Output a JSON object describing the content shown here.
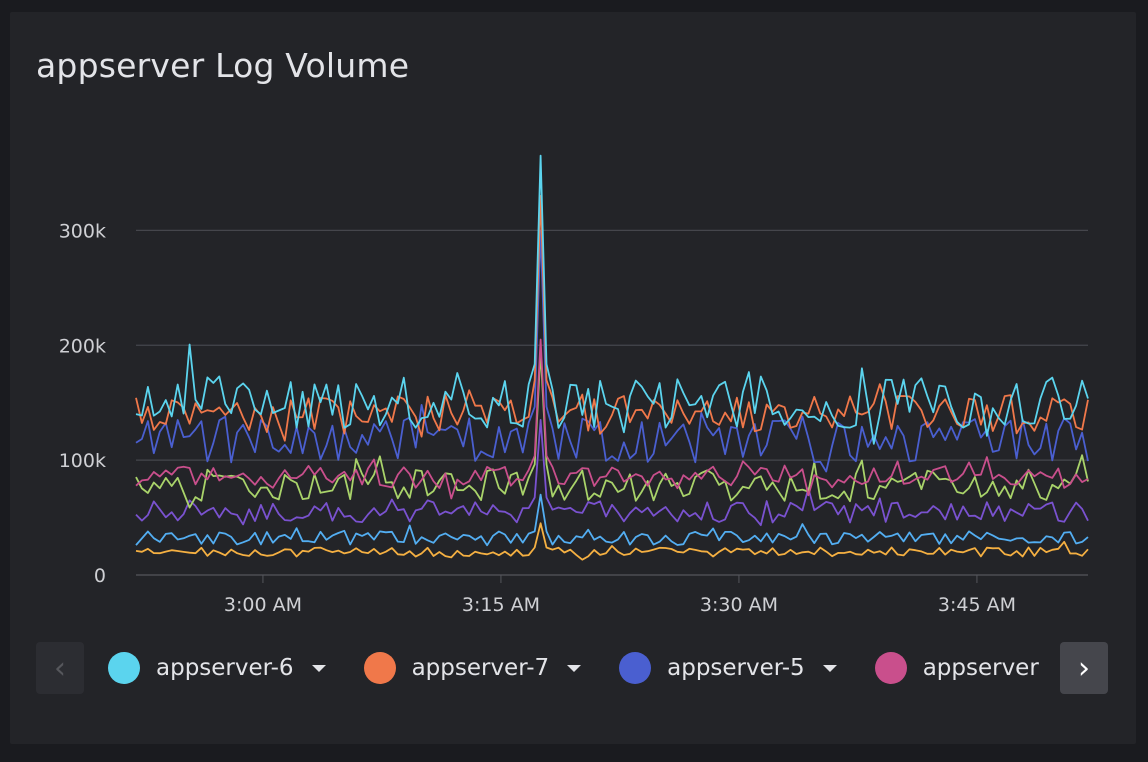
{
  "chart_data": {
    "type": "line",
    "title": "appserver Log Volume",
    "ylim": [
      0,
      370000
    ],
    "y_ticks": [
      0,
      100000,
      200000,
      300000
    ],
    "y_tick_labels": [
      "0",
      "100k",
      "200k",
      "300k"
    ],
    "x_range": [
      "2:52 AM",
      "3:52 AM"
    ],
    "x_ticks": [
      "3:00 AM",
      "3:15 AM",
      "3:30 AM",
      "3:45 AM"
    ],
    "x_tick_minutes": [
      8,
      23,
      38,
      53
    ],
    "x_minutes_range": [
      0,
      60
    ],
    "grid": "horizontal",
    "legend_position": "bottom",
    "series": [
      {
        "name": "appserver-6",
        "color": "#5bd4ee",
        "base": 150000,
        "amp": 22000,
        "spike": 365000
      },
      {
        "name": "appserver-7",
        "color": "#f0784a",
        "base": 140000,
        "amp": 18000,
        "spike": 330000
      },
      {
        "name": "",
        "color": "#4a5fd0",
        "base": 118000,
        "amp": 20000,
        "spike": 300000
      },
      {
        "name": "",
        "color": "#c94f8c",
        "base": 85000,
        "amp": 10000,
        "spike": 205000
      },
      {
        "name": "",
        "color": "#a9d36a",
        "base": 78000,
        "amp": 14000,
        "spike": 195000
      },
      {
        "name": "",
        "color": "#7a52d0",
        "base": 55000,
        "amp": 10000,
        "spike": 135000
      },
      {
        "name": "",
        "color": "#53aef2",
        "base": 32000,
        "amp": 6000,
        "spike": 70000
      },
      {
        "name": "",
        "color": "#f5b042",
        "base": 20000,
        "amp": 4000,
        "spike": 45000
      }
    ],
    "spike_minute": 25.5
  },
  "legend": {
    "items": [
      {
        "label": "appserver-6",
        "color": "#5bd4ee"
      },
      {
        "label": "appserver-7",
        "color": "#f0784a"
      },
      {
        "label": "appserver-5",
        "color": "#4a5fd0"
      },
      {
        "label": "appserver",
        "color": "#c94f8c"
      }
    ]
  }
}
